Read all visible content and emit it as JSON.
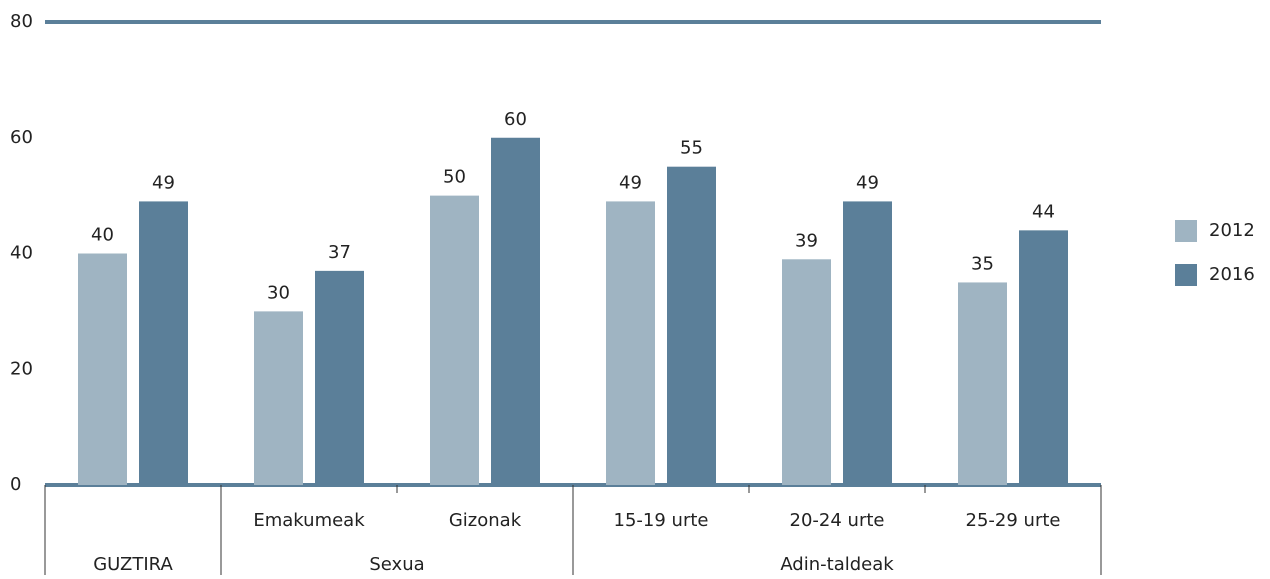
{
  "chart_data": {
    "type": "bar",
    "groups": [
      {
        "label": "GUZTIRA",
        "categories": [
          null
        ]
      },
      {
        "label": "Sexua",
        "categories": [
          "Emakumeak",
          "Gizonak"
        ]
      },
      {
        "label": "Adin-taldeak",
        "categories": [
          "15-19 urte",
          "20-24 urte",
          "25-29 urte"
        ]
      }
    ],
    "series": [
      {
        "name": "2012",
        "color": "#9fb4c2",
        "values": [
          40,
          30,
          50,
          49,
          39,
          35
        ]
      },
      {
        "name": "2016",
        "color": "#5b7f99",
        "values": [
          49,
          37,
          60,
          55,
          49,
          44
        ]
      }
    ],
    "ylim": [
      0,
      80
    ],
    "yticks": [
      0,
      20,
      40,
      60,
      80
    ],
    "grid": false,
    "legend": "right"
  }
}
